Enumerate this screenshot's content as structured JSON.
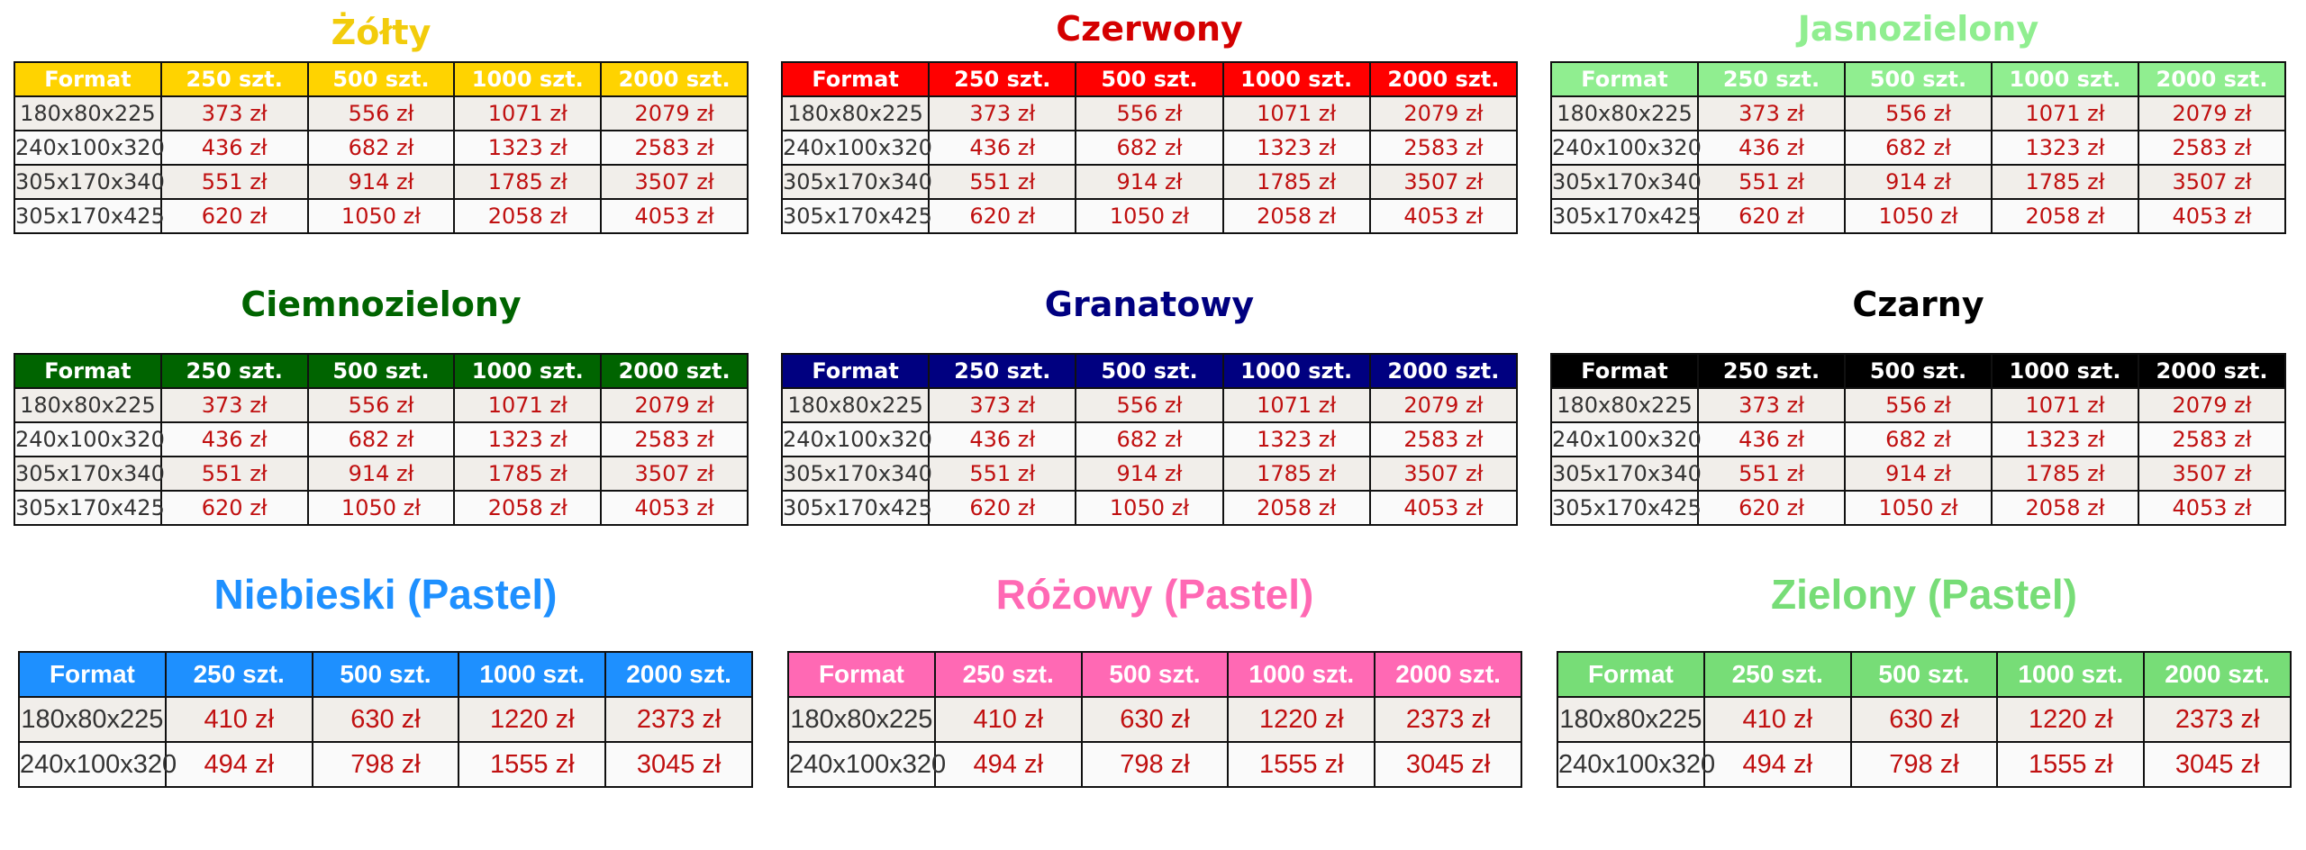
{
  "tables": [
    {
      "title": "Żółty",
      "header": [
        "Format",
        "250 szt.",
        "500 szt.",
        "1000 szt.",
        "2000 szt."
      ],
      "rows": [
        [
          "180x80x225",
          "373 zł",
          "556 zł",
          "1071 zł",
          "2079 zł"
        ],
        [
          "240x100x320",
          "436 zł",
          "682 zł",
          "1323 zł",
          "2583 zł"
        ],
        [
          "305x170x340",
          "551 zł",
          "914 zł",
          "1785 zł",
          "3507 zł"
        ],
        [
          "305x170x425",
          "620 zł",
          "1050 zł",
          "2058 zł",
          "4053 zł"
        ]
      ]
    },
    {
      "title": "Czerwony",
      "header": [
        "Format",
        "250 szt.",
        "500 szt.",
        "1000 szt.",
        "2000 szt."
      ],
      "rows": [
        [
          "180x80x225",
          "373 zł",
          "556 zł",
          "1071 zł",
          "2079 zł"
        ],
        [
          "240x100x320",
          "436 zł",
          "682 zł",
          "1323 zł",
          "2583 zł"
        ],
        [
          "305x170x340",
          "551 zł",
          "914 zł",
          "1785 zł",
          "3507 zł"
        ],
        [
          "305x170x425",
          "620 zł",
          "1050 zł",
          "2058 zł",
          "4053 zł"
        ]
      ]
    },
    {
      "title": "Jasnozielony",
      "header": [
        "Format",
        "250 szt.",
        "500 szt.",
        "1000 szt.",
        "2000 szt."
      ],
      "rows": [
        [
          "180x80x225",
          "373 zł",
          "556 zł",
          "1071 zł",
          "2079 zł"
        ],
        [
          "240x100x320",
          "436 zł",
          "682 zł",
          "1323 zł",
          "2583 zł"
        ],
        [
          "305x170x340",
          "551 zł",
          "914 zł",
          "1785 zł",
          "3507 zł"
        ],
        [
          "305x170x425",
          "620 zł",
          "1050 zł",
          "2058 zł",
          "4053 zł"
        ]
      ]
    },
    {
      "title": "Ciemnozielony",
      "header": [
        "Format",
        "250 szt.",
        "500 szt.",
        "1000 szt.",
        "2000 szt."
      ],
      "rows": [
        [
          "180x80x225",
          "373 zł",
          "556 zł",
          "1071 zł",
          "2079 zł"
        ],
        [
          "240x100x320",
          "436 zł",
          "682 zł",
          "1323 zł",
          "2583 zł"
        ],
        [
          "305x170x340",
          "551 zł",
          "914 zł",
          "1785 zł",
          "3507 zł"
        ],
        [
          "305x170x425",
          "620 zł",
          "1050 zł",
          "2058 zł",
          "4053 zł"
        ]
      ]
    },
    {
      "title": "Granatowy",
      "header": [
        "Format",
        "250 szt.",
        "500 szt.",
        "1000 szt.",
        "2000 szt."
      ],
      "rows": [
        [
          "180x80x225",
          "373 zł",
          "556 zł",
          "1071 zł",
          "2079 zł"
        ],
        [
          "240x100x320",
          "436 zł",
          "682 zł",
          "1323 zł",
          "2583 zł"
        ],
        [
          "305x170x340",
          "551 zł",
          "914 zł",
          "1785 zł",
          "3507 zł"
        ],
        [
          "305x170x425",
          "620 zł",
          "1050 zł",
          "2058 zł",
          "4053 zł"
        ]
      ]
    },
    {
      "title": "Czarny",
      "header": [
        "Format",
        "250 szt.",
        "500 szt.",
        "1000 szt.",
        "2000 szt."
      ],
      "rows": [
        [
          "180x80x225",
          "373 zł",
          "556 zł",
          "1071 zł",
          "2079 zł"
        ],
        [
          "240x100x320",
          "436 zł",
          "682 zł",
          "1323 zł",
          "2583 zł"
        ],
        [
          "305x170x340",
          "551 zł",
          "914 zł",
          "1785 zł",
          "3507 zł"
        ],
        [
          "305x170x425",
          "620 zł",
          "1050 zł",
          "2058 zł",
          "4053 zł"
        ]
      ]
    },
    {
      "title": "Niebieski (Pastel)",
      "header": [
        "Format",
        "250 szt.",
        "500 szt.",
        "1000 szt.",
        "2000 szt."
      ],
      "rows": [
        [
          "180x80x225",
          "410 zł",
          "630 zł",
          "1220 zł",
          "2373 zł"
        ],
        [
          "240x100x320",
          "494 zł",
          "798 zł",
          "1555 zł",
          "3045 zł"
        ]
      ]
    },
    {
      "title": "Różowy (Pastel)",
      "header": [
        "Format",
        "250 szt.",
        "500 szt.",
        "1000 szt.",
        "2000 szt."
      ],
      "rows": [
        [
          "180x80x225",
          "410 zł",
          "630 zł",
          "1220 zł",
          "2373 zł"
        ],
        [
          "240x100x320",
          "494 zł",
          "798 zł",
          "1555 zł",
          "3045 zł"
        ]
      ]
    },
    {
      "title": "Zielony (Pastel)",
      "header": [
        "Format",
        "250 szt.",
        "500 szt.",
        "1000 szt.",
        "2000 szt."
      ],
      "rows": [
        [
          "180x80x225",
          "410 zł",
          "630 zł",
          "1220 zł",
          "2373 zł"
        ],
        [
          "240x100x320",
          "494 zł",
          "798 zł",
          "1555 zł",
          "3045 zł"
        ]
      ]
    }
  ]
}
